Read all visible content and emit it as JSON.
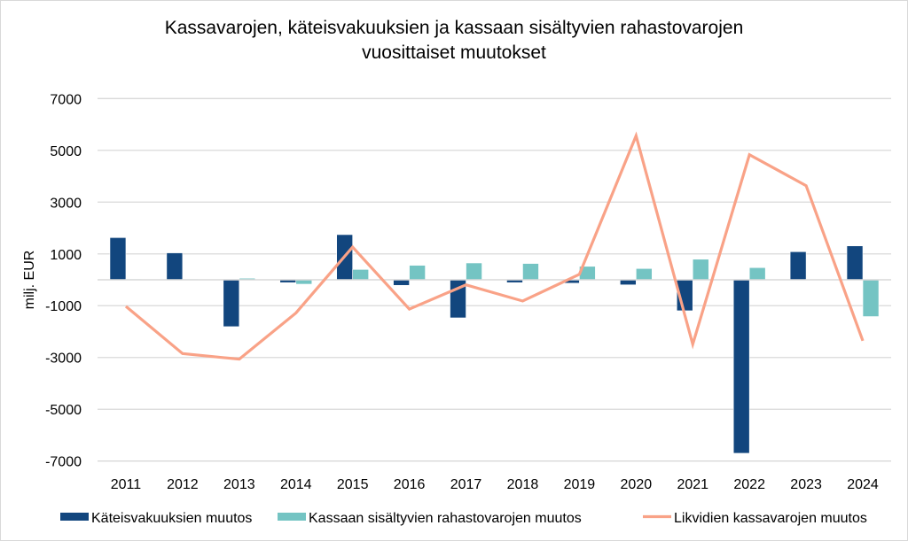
{
  "chart_data": {
    "type": "bar",
    "title_lines": [
      "Kassavarojen, käteisvakuuksien ja kassaan sisältyvien rahastovarojen",
      "vuosittaiset muutokset"
    ],
    "xlabel": "",
    "ylabel": "milj. EUR",
    "ylim": [
      -7000,
      7000
    ],
    "yticks": [
      7000,
      5000,
      3000,
      1000,
      -1000,
      -3000,
      -5000,
      -7000
    ],
    "grid": true,
    "legend_position": "bottom",
    "categories": [
      "2011",
      "2012",
      "2013",
      "2014",
      "2015",
      "2016",
      "2017",
      "2018",
      "2019",
      "2020",
      "2021",
      "2022",
      "2023",
      "2024"
    ],
    "series": [
      {
        "name": "Käteisvakuuksien muutos",
        "type": "bar",
        "color": "#12467e",
        "values": [
          1630,
          1040,
          -1810,
          -110,
          1745,
          -215,
          -1470,
          -110,
          -130,
          -195,
          -1195,
          -6700,
          1085,
          1310
        ]
      },
      {
        "name": "Kassaan sisältyvien rahastovarojen muutos",
        "type": "bar",
        "color": "#74c4c3",
        "values": [
          30,
          30,
          60,
          -170,
          400,
          560,
          650,
          630,
          520,
          435,
          795,
          470,
          25,
          -1420
        ]
      },
      {
        "name": "Likvidien kassavarojen muutos",
        "type": "line",
        "color": "#f9a287",
        "values": [
          -1025,
          -2850,
          -3065,
          -1280,
          1265,
          -1130,
          -195,
          -820,
          210,
          5560,
          -2490,
          4830,
          3635,
          -2355
        ]
      }
    ]
  }
}
